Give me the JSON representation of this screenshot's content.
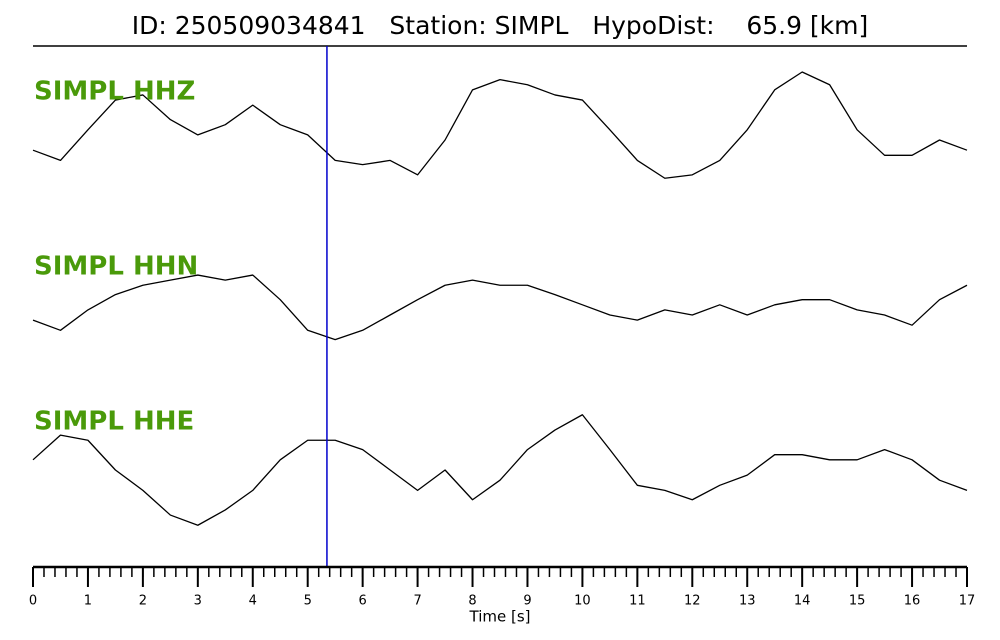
{
  "chart_data": {
    "type": "line",
    "title": "ID: 250509034841   Station: SIMPL   HypoDist:    65.9 [km]",
    "xlabel": "Time [s]",
    "xlim": [
      0,
      17
    ],
    "xticks": [
      0,
      1,
      2,
      3,
      4,
      5,
      6,
      7,
      8,
      9,
      10,
      11,
      12,
      13,
      14,
      15,
      16,
      17
    ],
    "xminor_step": 0.2,
    "ylim": [
      -1,
      1
    ],
    "label_color": "#4a9a0a",
    "marker_time": 5.35,
    "marker_color": "#0000cc",
    "x": [
      0,
      0.5,
      1,
      1.5,
      2,
      2.5,
      3,
      3.5,
      4,
      4.5,
      5,
      5.5,
      6,
      6.5,
      7,
      7.5,
      8,
      8.5,
      9,
      9.5,
      10,
      10.5,
      11,
      11.5,
      12,
      12.5,
      13,
      13.5,
      14,
      14.5,
      15,
      15.5,
      16,
      16.5,
      17
    ],
    "series": [
      {
        "name": "SIMPL HHZ",
        "color": "#000000",
        "values": [
          -0.12,
          -0.24,
          0.12,
          0.47,
          0.53,
          0.24,
          0.06,
          0.18,
          0.41,
          0.18,
          0.06,
          -0.24,
          -0.29,
          -0.24,
          -0.41,
          0,
          0.59,
          0.71,
          0.65,
          0.53,
          0.47,
          0.12,
          -0.24,
          -0.45,
          -0.41,
          -0.24,
          0.12,
          0.59,
          0.8,
          0.65,
          0.12,
          -0.18,
          -0.18,
          0,
          -0.12
        ]
      },
      {
        "name": "SIMPL HHN",
        "color": "#000000",
        "values": [
          -0.06,
          -0.18,
          0.06,
          0.24,
          0.35,
          0.41,
          0.47,
          0.41,
          0.47,
          0.18,
          -0.18,
          -0.29,
          -0.18,
          0,
          0.18,
          0.35,
          0.41,
          0.35,
          0.35,
          0.24,
          0.12,
          0,
          -0.06,
          0.06,
          0,
          0.12,
          0,
          0.12,
          0.18,
          0.18,
          0.06,
          0,
          -0.12,
          0.18,
          0.35
        ]
      },
      {
        "name": "SIMPL HHE",
        "color": "#000000",
        "values": [
          0.12,
          0.41,
          0.35,
          0,
          -0.24,
          -0.53,
          -0.65,
          -0.47,
          -0.24,
          0.12,
          0.35,
          0.35,
          0.24,
          0,
          -0.24,
          0,
          -0.35,
          -0.12,
          0.24,
          0.47,
          0.65,
          0.24,
          -0.18,
          -0.24,
          -0.35,
          -0.18,
          -0.06,
          0.18,
          0.18,
          0.12,
          0.12,
          0.24,
          0.12,
          -0.12,
          -0.24
        ]
      }
    ]
  }
}
